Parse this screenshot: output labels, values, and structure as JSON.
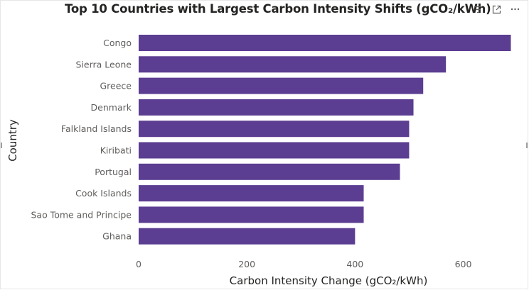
{
  "chart_data": {
    "type": "bar",
    "orientation": "horizontal",
    "title": "Top 10 Countries with Largest Carbon Intensity Shifts (gCO₂/kWh)",
    "xlabel": "Carbon Intensity Change (gCO₂/kWh)",
    "ylabel": "Country",
    "categories": [
      "Congo",
      "Sierra Leone",
      "Greece",
      "Denmark",
      "Falkland Islands",
      "Kiribati",
      "Portugal",
      "Cook Islands",
      "Sao Tome and Principe",
      "Ghana"
    ],
    "values": [
      688,
      568,
      526,
      508,
      500,
      500,
      483,
      416,
      416,
      400
    ],
    "xlim": [
      0,
      690
    ],
    "xticks": [
      0,
      200,
      400,
      600
    ],
    "grid": false,
    "bar_color": "#5b3d91"
  },
  "header": {
    "icons": [
      "filter-icon",
      "focus-mode-icon",
      "more-options-icon"
    ]
  }
}
